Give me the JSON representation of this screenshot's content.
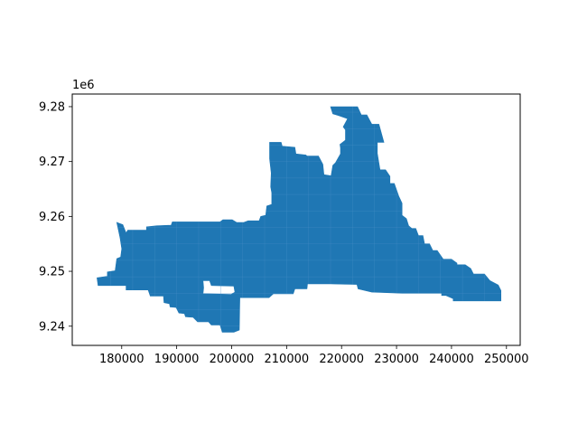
{
  "chart_data": {
    "type": "area",
    "title": "",
    "xlabel": "",
    "ylabel": "",
    "y_offset_label": "1e6",
    "xlim": [
      171000,
      252500
    ],
    "ylim": [
      9236500,
      9282300
    ],
    "x_ticks": [
      180000,
      190000,
      200000,
      210000,
      220000,
      230000,
      240000,
      250000
    ],
    "x_tick_labels": [
      "180000",
      "190000",
      "200000",
      "210000",
      "220000",
      "230000",
      "240000",
      "250000"
    ],
    "y_ticks": [
      9240000,
      9250000,
      9260000,
      9270000,
      9280000
    ],
    "y_tick_labels": [
      "9.24",
      "9.25",
      "9.26",
      "9.27",
      "9.28"
    ],
    "grid": false,
    "legend": "none",
    "fill_color": "#1f77b4",
    "series": [
      {
        "polygon": [
          [
            218000,
            9280000
          ],
          [
            222900,
            9280000
          ],
          [
            223600,
            9278500
          ],
          [
            224600,
            9278500
          ],
          [
            225500,
            9276800
          ],
          [
            226800,
            9276800
          ],
          [
            227700,
            9273500
          ],
          [
            226500,
            9273500
          ],
          [
            226500,
            9271500
          ],
          [
            227000,
            9268500
          ],
          [
            228000,
            9268500
          ],
          [
            228800,
            9267300
          ],
          [
            228800,
            9266000
          ],
          [
            229600,
            9266000
          ],
          [
            230400,
            9263700
          ],
          [
            231000,
            9262400
          ],
          [
            231000,
            9260200
          ],
          [
            231800,
            9259600
          ],
          [
            232200,
            9258300
          ],
          [
            232800,
            9257800
          ],
          [
            233500,
            9257800
          ],
          [
            234000,
            9256500
          ],
          [
            234800,
            9256500
          ],
          [
            235100,
            9255000
          ],
          [
            236000,
            9255000
          ],
          [
            236600,
            9253800
          ],
          [
            237400,
            9253800
          ],
          [
            238500,
            9252200
          ],
          [
            240000,
            9252200
          ],
          [
            241000,
            9251500
          ],
          [
            241000,
            9251200
          ],
          [
            242500,
            9251200
          ],
          [
            243500,
            9250500
          ],
          [
            244000,
            9249500
          ],
          [
            246000,
            9249500
          ],
          [
            247000,
            9248300
          ],
          [
            248500,
            9247500
          ],
          [
            249000,
            9246500
          ],
          [
            249000,
            9244600
          ],
          [
            246500,
            9244600
          ],
          [
            241000,
            9244600
          ],
          [
            240300,
            9244600
          ],
          [
            240300,
            9245000
          ],
          [
            239000,
            9245600
          ],
          [
            238200,
            9245600
          ],
          [
            238200,
            9246000
          ],
          [
            231000,
            9246000
          ],
          [
            225500,
            9246200
          ],
          [
            223000,
            9246800
          ],
          [
            222800,
            9247600
          ],
          [
            218000,
            9247700
          ],
          [
            213800,
            9247700
          ],
          [
            213700,
            9246800
          ],
          [
            211500,
            9246800
          ],
          [
            211200,
            9245900
          ],
          [
            207600,
            9245900
          ],
          [
            206800,
            9245200
          ],
          [
            202100,
            9245200
          ],
          [
            201500,
            9245200
          ],
          [
            201400,
            9239300
          ],
          [
            200400,
            9238900
          ],
          [
            198300,
            9238900
          ],
          [
            197900,
            9240200
          ],
          [
            196300,
            9240200
          ],
          [
            195800,
            9240800
          ],
          [
            193800,
            9240800
          ],
          [
            193000,
            9241600
          ],
          [
            191600,
            9241700
          ],
          [
            191400,
            9242300
          ],
          [
            190400,
            9242400
          ],
          [
            189900,
            9243400
          ],
          [
            188800,
            9243500
          ],
          [
            188700,
            9244100
          ],
          [
            187700,
            9244300
          ],
          [
            187600,
            9245500
          ],
          [
            185200,
            9245500
          ],
          [
            184800,
            9246600
          ],
          [
            180800,
            9246600
          ],
          [
            180800,
            9247400
          ],
          [
            175700,
            9247400
          ],
          [
            175500,
            9248800
          ],
          [
            177400,
            9249100
          ],
          [
            177400,
            9249900
          ],
          [
            178800,
            9250100
          ],
          [
            179100,
            9252300
          ],
          [
            179800,
            9252600
          ],
          [
            180000,
            9254100
          ],
          [
            179700,
            9256100
          ],
          [
            179100,
            9258900
          ],
          [
            180200,
            9258500
          ],
          [
            180800,
            9257000
          ],
          [
            181100,
            9257500
          ],
          [
            184500,
            9257500
          ],
          [
            184500,
            9258100
          ],
          [
            186400,
            9258300
          ],
          [
            189000,
            9258400
          ],
          [
            189200,
            9259000
          ],
          [
            197900,
            9259000
          ],
          [
            198400,
            9259400
          ],
          [
            200100,
            9259400
          ],
          [
            200900,
            9258900
          ],
          [
            202200,
            9258900
          ],
          [
            203000,
            9259200
          ],
          [
            205000,
            9259200
          ],
          [
            205300,
            9260000
          ],
          [
            206200,
            9260200
          ],
          [
            206400,
            9261900
          ],
          [
            207300,
            9262200
          ],
          [
            207300,
            9264300
          ],
          [
            207100,
            9265400
          ],
          [
            207200,
            9267900
          ],
          [
            206900,
            9270500
          ],
          [
            206900,
            9273500
          ],
          [
            209000,
            9273500
          ],
          [
            209200,
            9272800
          ],
          [
            211500,
            9272600
          ],
          [
            211700,
            9271400
          ],
          [
            213500,
            9271200
          ],
          [
            213700,
            9271000
          ],
          [
            215800,
            9271000
          ],
          [
            216600,
            9269500
          ],
          [
            216800,
            9267600
          ],
          [
            218100,
            9267400
          ],
          [
            218400,
            9269300
          ],
          [
            218900,
            9269800
          ],
          [
            219800,
            9271400
          ],
          [
            219800,
            9272500
          ],
          [
            219700,
            9273100
          ],
          [
            220700,
            9273900
          ],
          [
            220700,
            9275800
          ],
          [
            220300,
            9276300
          ],
          [
            221100,
            9277800
          ],
          [
            219400,
            9278400
          ],
          [
            218400,
            9278700
          ]
        ]
      },
      {
        "polygon": [
          [
            194800,
            9248300
          ],
          [
            196000,
            9248300
          ],
          [
            196300,
            9247400
          ],
          [
            200400,
            9247300
          ],
          [
            200600,
            9246200
          ],
          [
            199900,
            9245800
          ],
          [
            194800,
            9245900
          ],
          [
            194900,
            9247000
          ]
        ],
        "hole": true
      }
    ]
  }
}
